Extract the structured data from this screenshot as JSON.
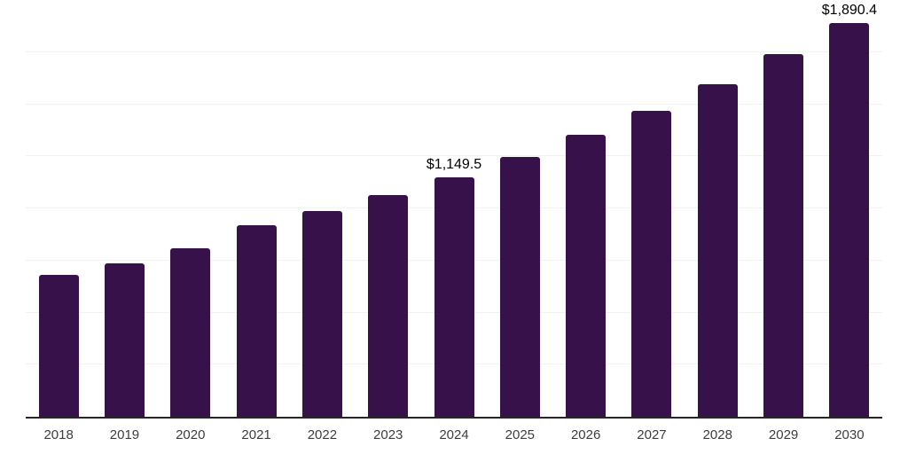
{
  "chart_data": {
    "type": "bar",
    "title": "",
    "xlabel": "",
    "ylabel": "",
    "categories": [
      "2018",
      "2019",
      "2020",
      "2021",
      "2022",
      "2023",
      "2024",
      "2025",
      "2026",
      "2027",
      "2028",
      "2029",
      "2030"
    ],
    "values": [
      680,
      735,
      808,
      919,
      986,
      1064,
      1149.5,
      1245,
      1355,
      1467,
      1595,
      1740,
      1890.4
    ],
    "data_labels": [
      "",
      "",
      "",
      "",
      "",
      "",
      "$1,149.5",
      "",
      "",
      "",
      "",
      "",
      "$1,890.4"
    ],
    "ylim": [
      0,
      2000
    ],
    "gridline_step": 250,
    "grid": "horizontal-light",
    "legend": "none",
    "colors": {
      "bar": "#36114a",
      "axis_line": "#262626",
      "gridline": "#f2f2f2",
      "tick_label": "#3d3d3d",
      "data_label": "#000000",
      "background": "#ffffff"
    }
  }
}
